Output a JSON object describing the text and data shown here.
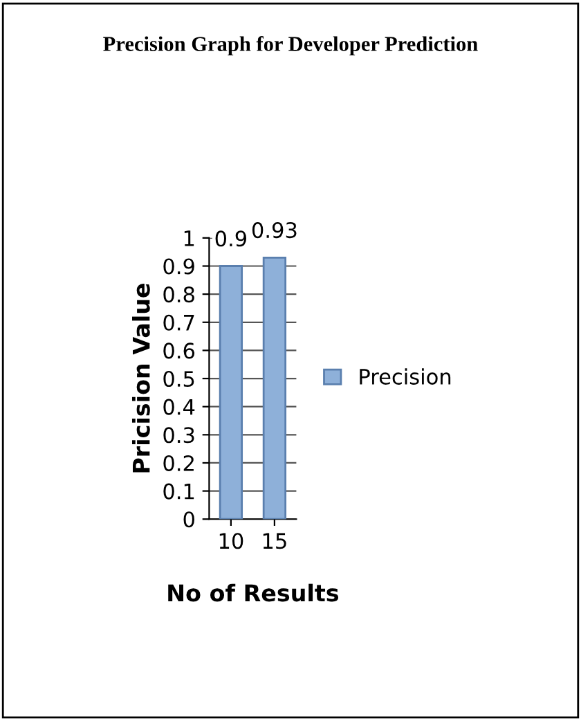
{
  "chart_data": {
    "type": "bar",
    "title": "Precision Graph for Developer Prediction",
    "xlabel": "No of Results",
    "ylabel": "Pricision Value",
    "categories": [
      "10",
      "15"
    ],
    "series": [
      {
        "name": "Precision",
        "color": "#8eb0d9",
        "values": [
          0.9,
          0.93
        ]
      }
    ],
    "ylim": [
      0,
      1
    ],
    "yticks": [
      0,
      0.1,
      0.2,
      0.3,
      0.4,
      0.5,
      0.6,
      0.7,
      0.8,
      0.9,
      1
    ],
    "grid": "y",
    "legend": "right",
    "data_labels": true
  }
}
